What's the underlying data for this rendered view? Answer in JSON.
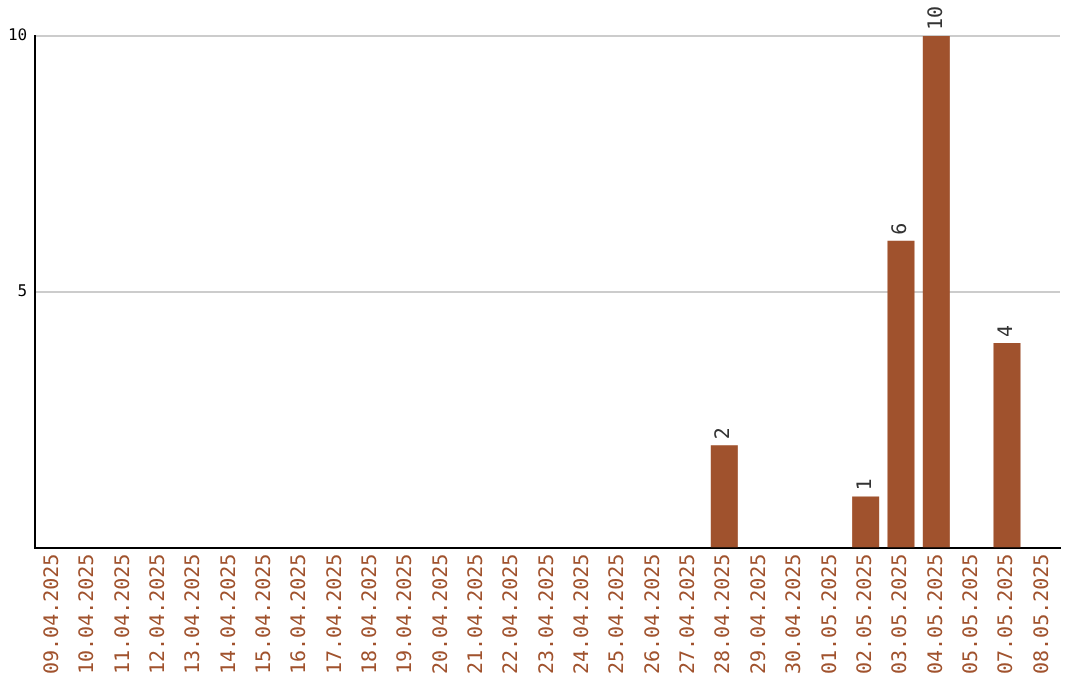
{
  "chart_data": {
    "type": "bar",
    "categories": [
      "09.04.2025",
      "10.04.2025",
      "11.04.2025",
      "12.04.2025",
      "13.04.2025",
      "14.04.2025",
      "15.04.2025",
      "16.04.2025",
      "17.04.2025",
      "18.04.2025",
      "19.04.2025",
      "20.04.2025",
      "21.04.2025",
      "22.04.2025",
      "23.04.2025",
      "24.04.2025",
      "25.04.2025",
      "26.04.2025",
      "27.04.2025",
      "28.04.2025",
      "29.04.2025",
      "30.04.2025",
      "01.05.2025",
      "02.05.2025",
      "03.05.2025",
      "04.05.2025",
      "05.05.2025",
      "07.05.2025",
      "08.05.2025"
    ],
    "values": [
      0,
      0,
      0,
      0,
      0,
      0,
      0,
      0,
      0,
      0,
      0,
      0,
      0,
      0,
      0,
      0,
      0,
      0,
      0,
      2,
      0,
      0,
      0,
      1,
      6,
      10,
      0,
      4,
      0
    ],
    "value_labels": [
      null,
      null,
      null,
      null,
      null,
      null,
      null,
      null,
      null,
      null,
      null,
      null,
      null,
      null,
      null,
      null,
      null,
      null,
      null,
      "2",
      null,
      null,
      null,
      "1",
      "6",
      "10",
      null,
      "4",
      null
    ],
    "color": "#a0522d",
    "ylim": [
      0,
      10
    ],
    "yticks": [
      5,
      10
    ],
    "grid": "y",
    "legend": false
  }
}
